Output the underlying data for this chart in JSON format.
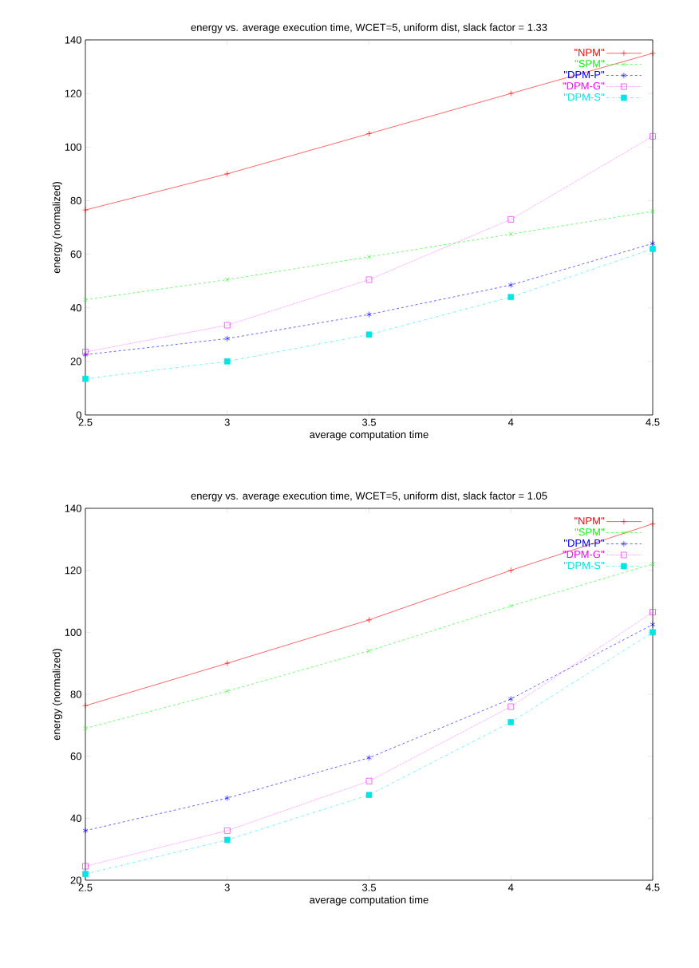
{
  "chart_data": [
    {
      "type": "line",
      "title": "energy vs. average execution time, WCET=5, uniform dist, slack factor = 1.33",
      "xlabel": "average computation time",
      "ylabel": "energy (normalized)",
      "x": [
        2.5,
        3,
        3.5,
        4,
        4.5
      ],
      "xlim": [
        2.5,
        4.5
      ],
      "xticks": [
        2.5,
        3,
        3.5,
        4,
        4.5
      ],
      "ylim": [
        0,
        140
      ],
      "yticks": [
        0,
        20,
        40,
        60,
        80,
        100,
        120,
        140
      ],
      "legend": "top right",
      "grid": false,
      "series": [
        {
          "name": "\"NPM\"",
          "color": "#ff0000",
          "marker": "cross",
          "line_style": "solid",
          "values": [
            76.5,
            90,
            105,
            120,
            135
          ]
        },
        {
          "name": "\"SPM\"",
          "color": "#00ff00",
          "marker": "cross",
          "line_style": "dashed",
          "values": [
            43,
            50.5,
            59,
            67.5,
            76
          ]
        },
        {
          "name": "\"DPM-P\"",
          "color": "#0000ff",
          "marker": "cross",
          "line_style": "dashed",
          "values": [
            22.5,
            28.5,
            37.5,
            48.5,
            64
          ]
        },
        {
          "name": "\"DPM-G\"",
          "color": "#ff00ff",
          "marker": "square",
          "line_style": "dotted",
          "values": [
            23.5,
            33.5,
            50.5,
            73,
            104
          ]
        },
        {
          "name": "\"DPM-S\"",
          "color": "#00e5e5",
          "marker": "square",
          "line_style": "dashdot",
          "values": [
            13.5,
            20,
            30,
            44,
            62
          ]
        }
      ]
    },
    {
      "type": "line",
      "title": "energy vs. average execution time, WCET=5, uniform dist, slack factor = 1.05",
      "xlabel": "average computation time",
      "ylabel": "energy (normalized)",
      "x": [
        2.5,
        3,
        3.5,
        4,
        4.5
      ],
      "xlim": [
        2.5,
        4.5
      ],
      "xticks": [
        2.5,
        3,
        3.5,
        4,
        4.5
      ],
      "ylim": [
        20,
        140
      ],
      "yticks": [
        20,
        40,
        60,
        80,
        100,
        120,
        140
      ],
      "legend": "top right",
      "grid": false,
      "series": [
        {
          "name": "\"NPM\"",
          "color": "#ff0000",
          "marker": "cross",
          "line_style": "solid",
          "values": [
            76.3,
            90,
            104,
            120,
            135
          ]
        },
        {
          "name": "\"SPM\"",
          "color": "#00ff00",
          "marker": "cross",
          "line_style": "dashed",
          "values": [
            69,
            81,
            94,
            108.5,
            122
          ]
        },
        {
          "name": "\"DPM-P\"",
          "color": "#0000ff",
          "marker": "cross",
          "line_style": "dashed",
          "values": [
            36,
            46.5,
            59.5,
            78.5,
            102.5
          ]
        },
        {
          "name": "\"DPM-G\"",
          "color": "#ff00ff",
          "marker": "square",
          "line_style": "dotted",
          "values": [
            24.5,
            36,
            52,
            76,
            106.5
          ]
        },
        {
          "name": "\"DPM-S\"",
          "color": "#00e5e5",
          "marker": "square",
          "line_style": "dashdot",
          "values": [
            22,
            33,
            47.5,
            71,
            100
          ]
        }
      ]
    }
  ]
}
